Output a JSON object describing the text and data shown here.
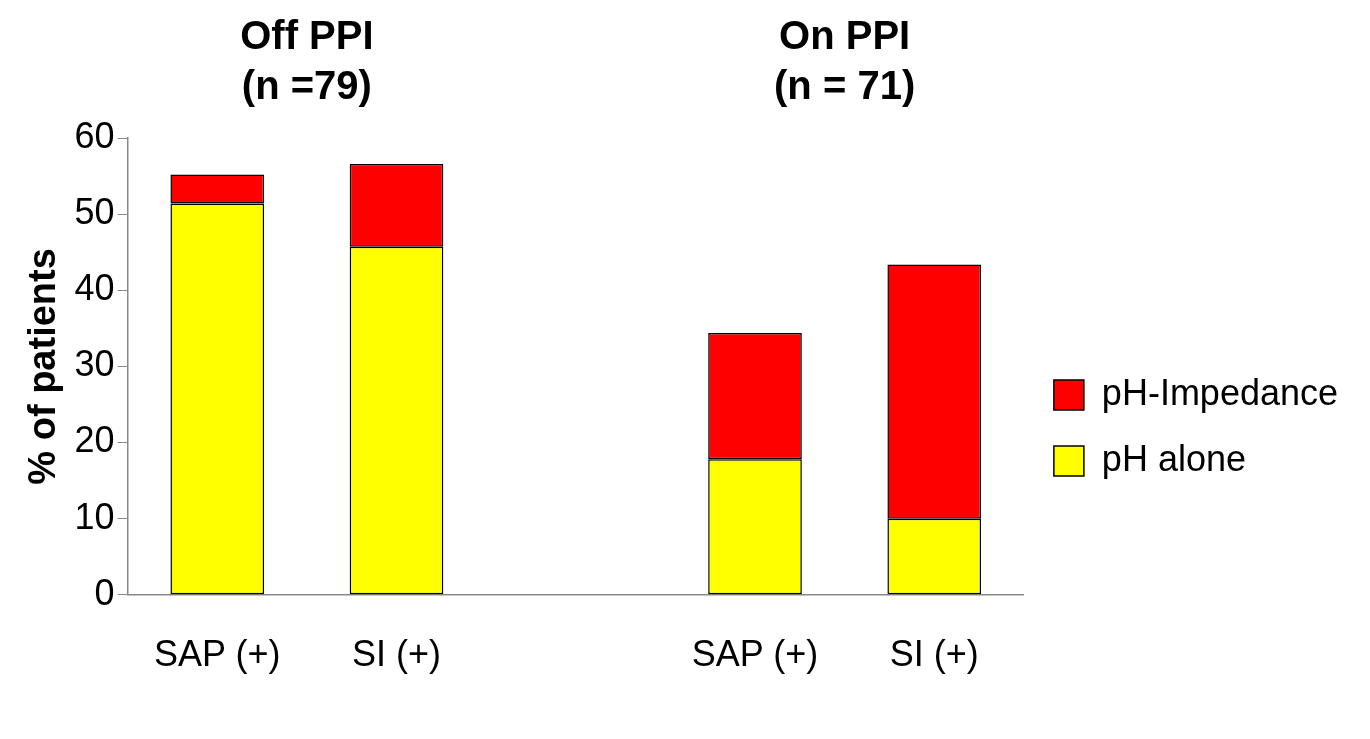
{
  "chart_data": {
    "type": "bar",
    "stacked": true,
    "ylabel": "% of patients",
    "categories": [
      "SAP (+)",
      "SI (+)",
      null,
      "SAP (+)",
      "SI (+)"
    ],
    "series": [
      {
        "name": "pH alone",
        "color": "#ffff00",
        "values": [
          51.4,
          45.7,
          null,
          17.8,
          10
        ]
      },
      {
        "name": "pH-Impedance",
        "color": "#ff0000",
        "values": [
          3.8,
          10.9,
          null,
          16.6,
          33.4
        ]
      }
    ],
    "ylim": [
      0,
      60
    ],
    "yticks": [
      0,
      10,
      20,
      30,
      40,
      50,
      60
    ],
    "grid": false,
    "legend": "right",
    "annotations": [
      "Off PPI\n(n =79)",
      "On PPI\n(n = 71)"
    ]
  }
}
